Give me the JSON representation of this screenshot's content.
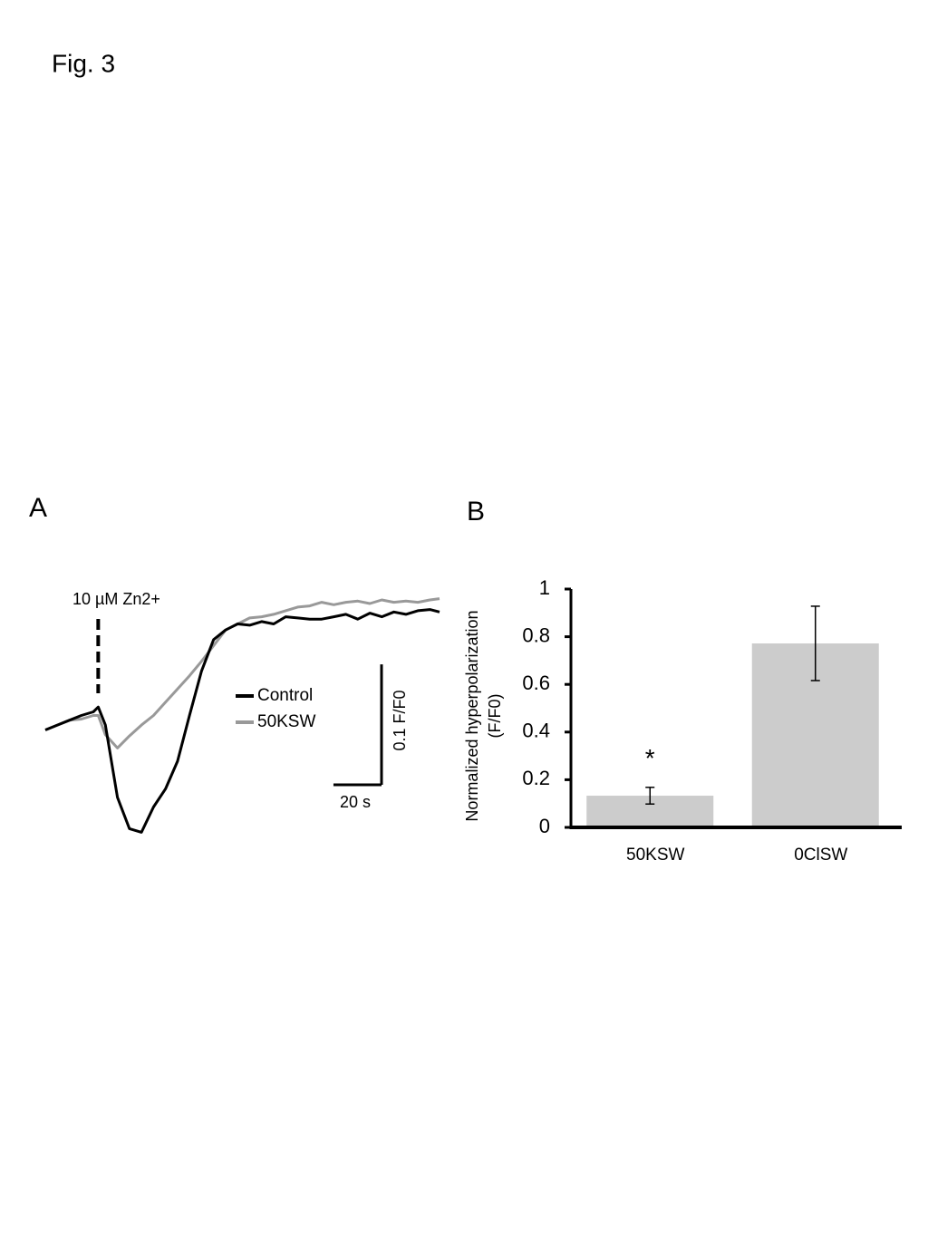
{
  "figure_title": "Fig. 3",
  "chart_data": [
    {
      "type": "line",
      "panel_label": "A",
      "x": [
        0,
        5,
        10,
        15,
        20,
        22,
        25,
        30,
        35,
        40,
        45,
        50,
        55,
        60,
        65,
        70,
        75,
        80,
        85,
        90,
        95,
        100,
        105,
        110,
        115,
        120,
        125,
        130,
        135,
        140,
        145,
        150,
        155,
        160,
        164
      ],
      "series": [
        {
          "name": "Control",
          "color": "#000000",
          "values": [
            0.996,
            1.0,
            1.004,
            1.008,
            1.011,
            1.015,
            1.0,
            0.94,
            0.914,
            0.911,
            0.932,
            0.947,
            0.97,
            1.008,
            1.045,
            1.071,
            1.079,
            1.084,
            1.083,
            1.086,
            1.084,
            1.09,
            1.089,
            1.088,
            1.088,
            1.09,
            1.092,
            1.088,
            1.093,
            1.09,
            1.094,
            1.092,
            1.095,
            1.096,
            1.094
          ]
        },
        {
          "name": "50KSW",
          "color": "#999999",
          "values": [
            0.996,
            1.0,
            1.004,
            1.005,
            1.008,
            1.008,
            0.992,
            0.981,
            0.991,
            1.0,
            1.008,
            1.019,
            1.03,
            1.041,
            1.053,
            1.066,
            1.079,
            1.084,
            1.089,
            1.09,
            1.092,
            1.095,
            1.098,
            1.099,
            1.102,
            1.1,
            1.102,
            1.103,
            1.101,
            1.104,
            1.102,
            1.103,
            1.102,
            1.104,
            1.105
          ]
        }
      ],
      "xlim": [
        0,
        164
      ],
      "ylim": [
        0.9,
        1.11
      ],
      "annotation": {
        "text": "10 µM Zn2+",
        "x": 22
      },
      "scale_bars": {
        "x": {
          "value": 20,
          "label": "20 s"
        },
        "y": {
          "value": 0.1,
          "label": "0.1 F/F0"
        }
      },
      "legend": "center"
    },
    {
      "type": "bar",
      "panel_label": "B",
      "categories": [
        "50KSW",
        "0ClSW"
      ],
      "values": [
        0.133,
        0.772
      ],
      "errors": [
        0.035,
        0.156
      ],
      "color": "#cccccc",
      "ylabel": [
        "Normalized hyperpolarization",
        "(F/F0)"
      ],
      "ylim": [
        0,
        1
      ],
      "yticks": [
        0,
        0.2,
        0.4,
        0.6,
        0.8,
        1
      ],
      "annotation": {
        "text": "*",
        "category": 0
      }
    }
  ]
}
